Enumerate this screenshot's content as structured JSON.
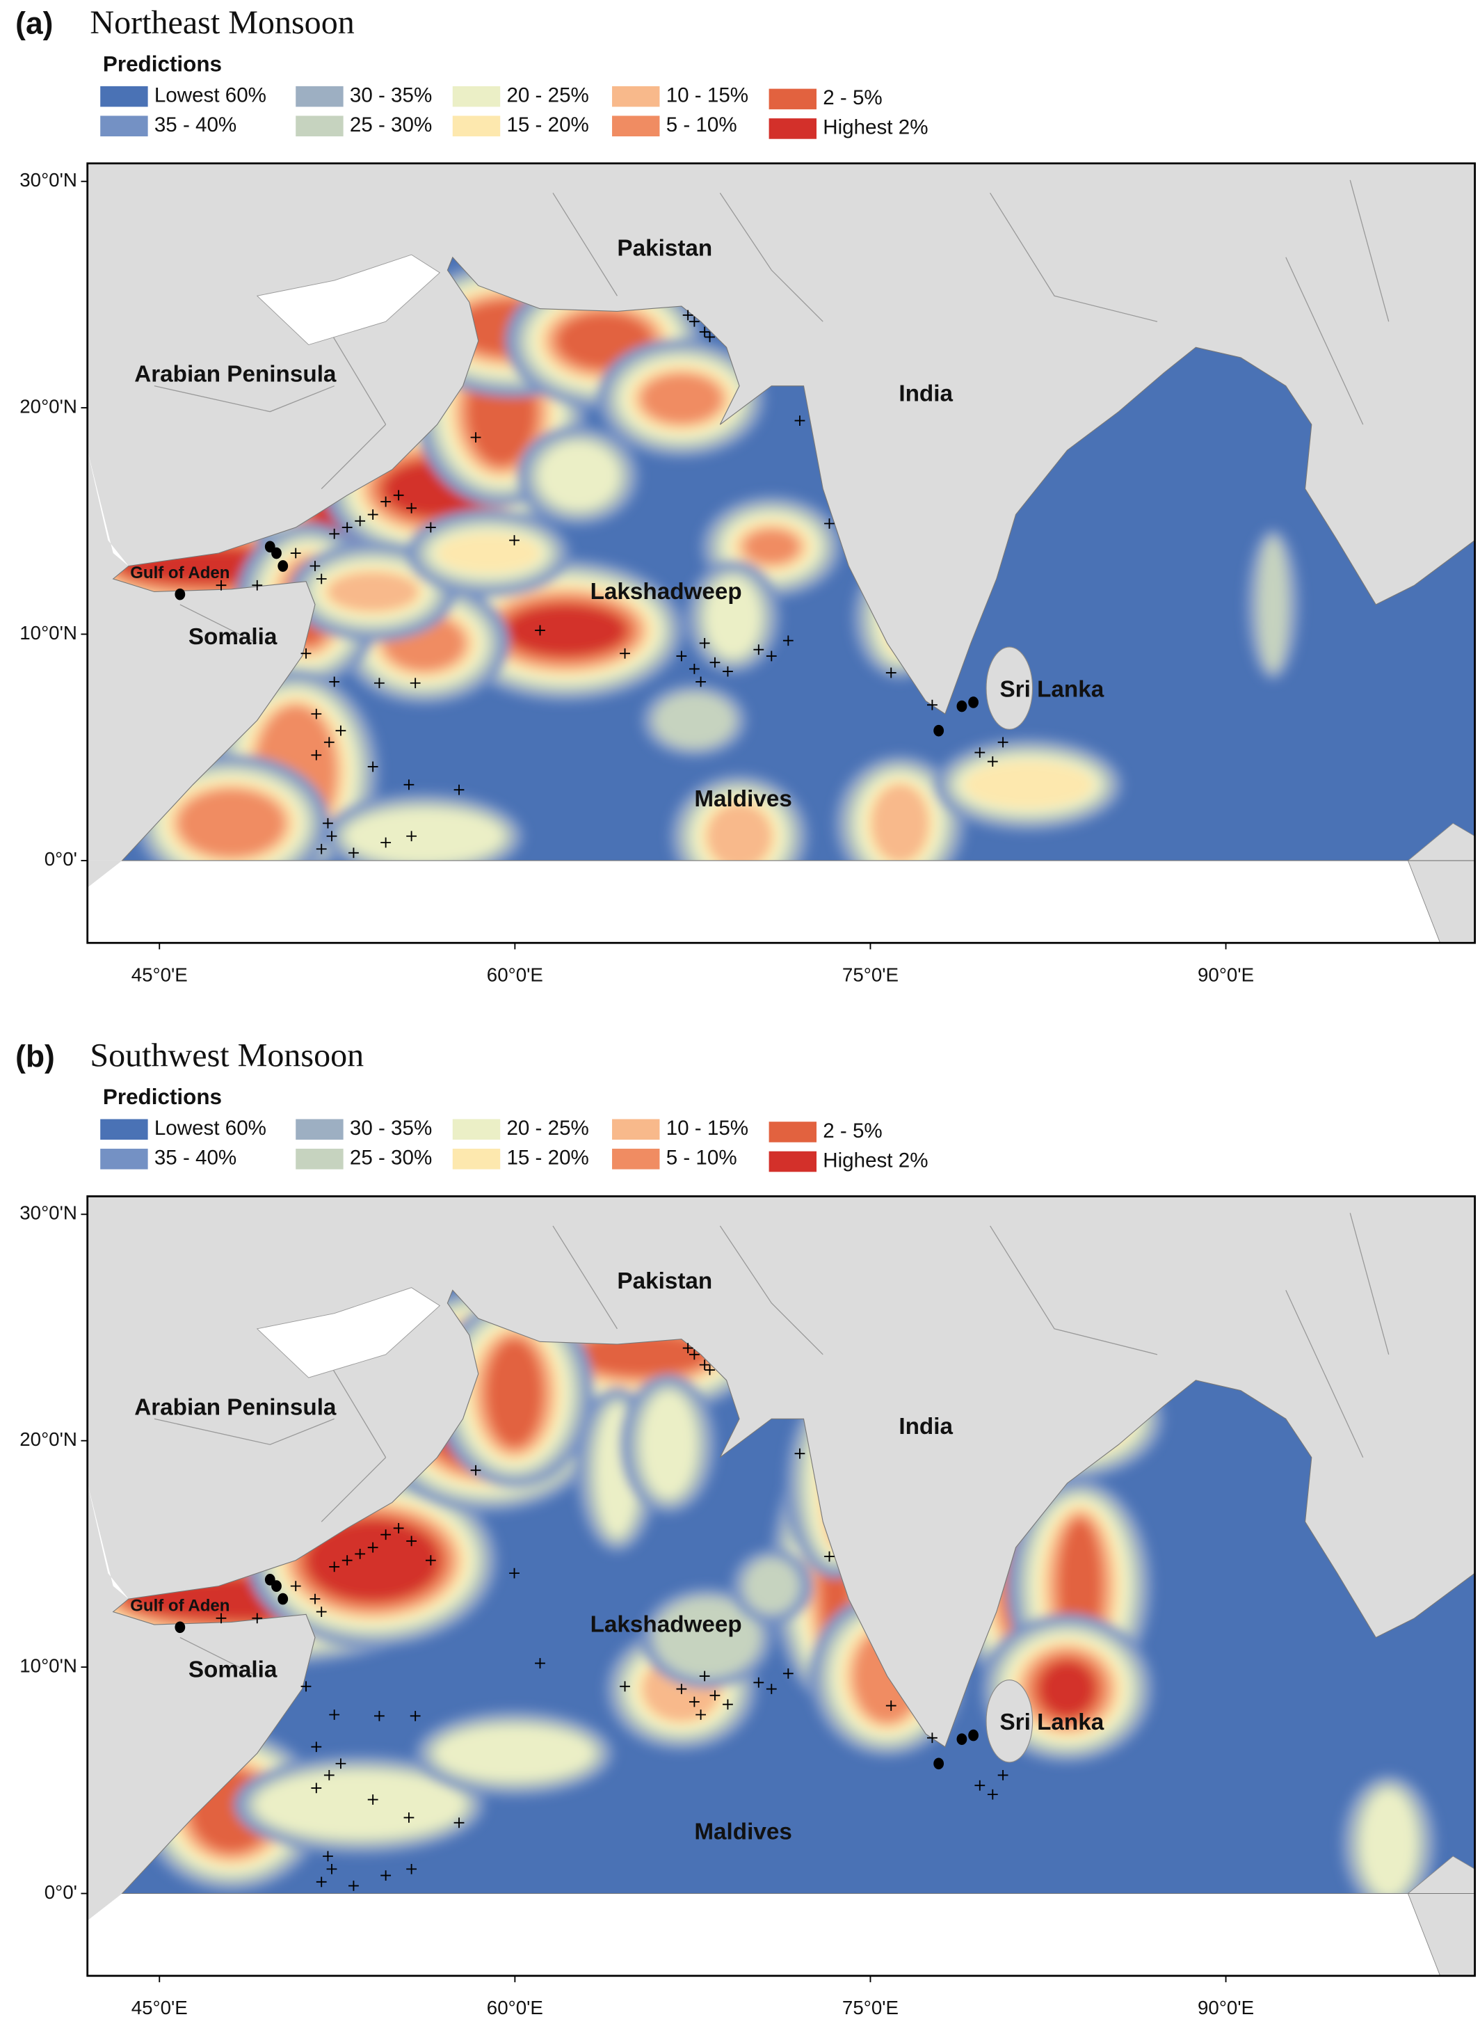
{
  "legend": {
    "title": "Predictions",
    "items": [
      {
        "label": "Lowest 60%",
        "color": "#4a72b5"
      },
      {
        "label": "35 - 40%",
        "color": "#7491c4"
      },
      {
        "label": "30 - 35%",
        "color": "#9dafc2"
      },
      {
        "label": "25 - 30%",
        "color": "#c6d3bf"
      },
      {
        "label": "20 - 25%",
        "color": "#ebefc6"
      },
      {
        "label": "15 - 20%",
        "color": "#fde8ae"
      },
      {
        "label": "10 - 15%",
        "color": "#f8b98b"
      },
      {
        "label": "5 - 10%",
        "color": "#f08c62"
      },
      {
        "label": "2 - 5%",
        "color": "#e2623f"
      },
      {
        "label": "Highest 2%",
        "color": "#d3302a"
      }
    ]
  },
  "axes": {
    "lat_ticks": [
      {
        "value": 30,
        "label": "30°0'N"
      },
      {
        "value": 20,
        "label": "20°0'N"
      },
      {
        "value": 10,
        "label": "10°0'N"
      },
      {
        "value": 0,
        "label": "0°0'"
      }
    ],
    "lon_ticks": [
      {
        "value": 45,
        "label": "45°0'E"
      },
      {
        "value": 60,
        "label": "60°0'E"
      },
      {
        "value": 75,
        "label": "75°0'E"
      },
      {
        "value": 90,
        "label": "90°0'E"
      }
    ]
  },
  "places": [
    "Pakistan",
    "India",
    "Arabian Peninsula",
    "Gulf of Aden",
    "Somalia",
    "Lakshadweep",
    "Sri Lanka",
    "Maldives"
  ],
  "panels": [
    {
      "letter": "(a)",
      "title": "Northeast Monsoon"
    },
    {
      "letter": "(b)",
      "title": "Southwest Monsoon"
    }
  ]
}
